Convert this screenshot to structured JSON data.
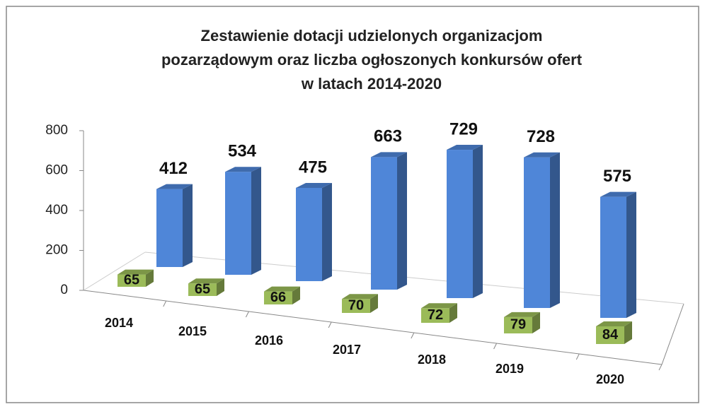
{
  "chart_data": {
    "type": "bar3d",
    "title": [
      "Zestawienie dotacji udzielonych organizacjom",
      "pozarządowym oraz liczba ogłoszonych konkursów ofert",
      "w latach  2014-2020"
    ],
    "categories": [
      "2014",
      "2015",
      "2016",
      "2017",
      "2018",
      "2019",
      "2020"
    ],
    "series": [
      {
        "color": "#4f86d8",
        "values": [
          412,
          534,
          475,
          663,
          729,
          728,
          575
        ]
      },
      {
        "color": "#9bbb59",
        "values": [
          65,
          65,
          66,
          70,
          72,
          79,
          84
        ]
      }
    ],
    "ylim": [
      0,
      800
    ],
    "yticks": [
      0,
      200,
      400,
      600,
      800
    ],
    "grid": false
  }
}
